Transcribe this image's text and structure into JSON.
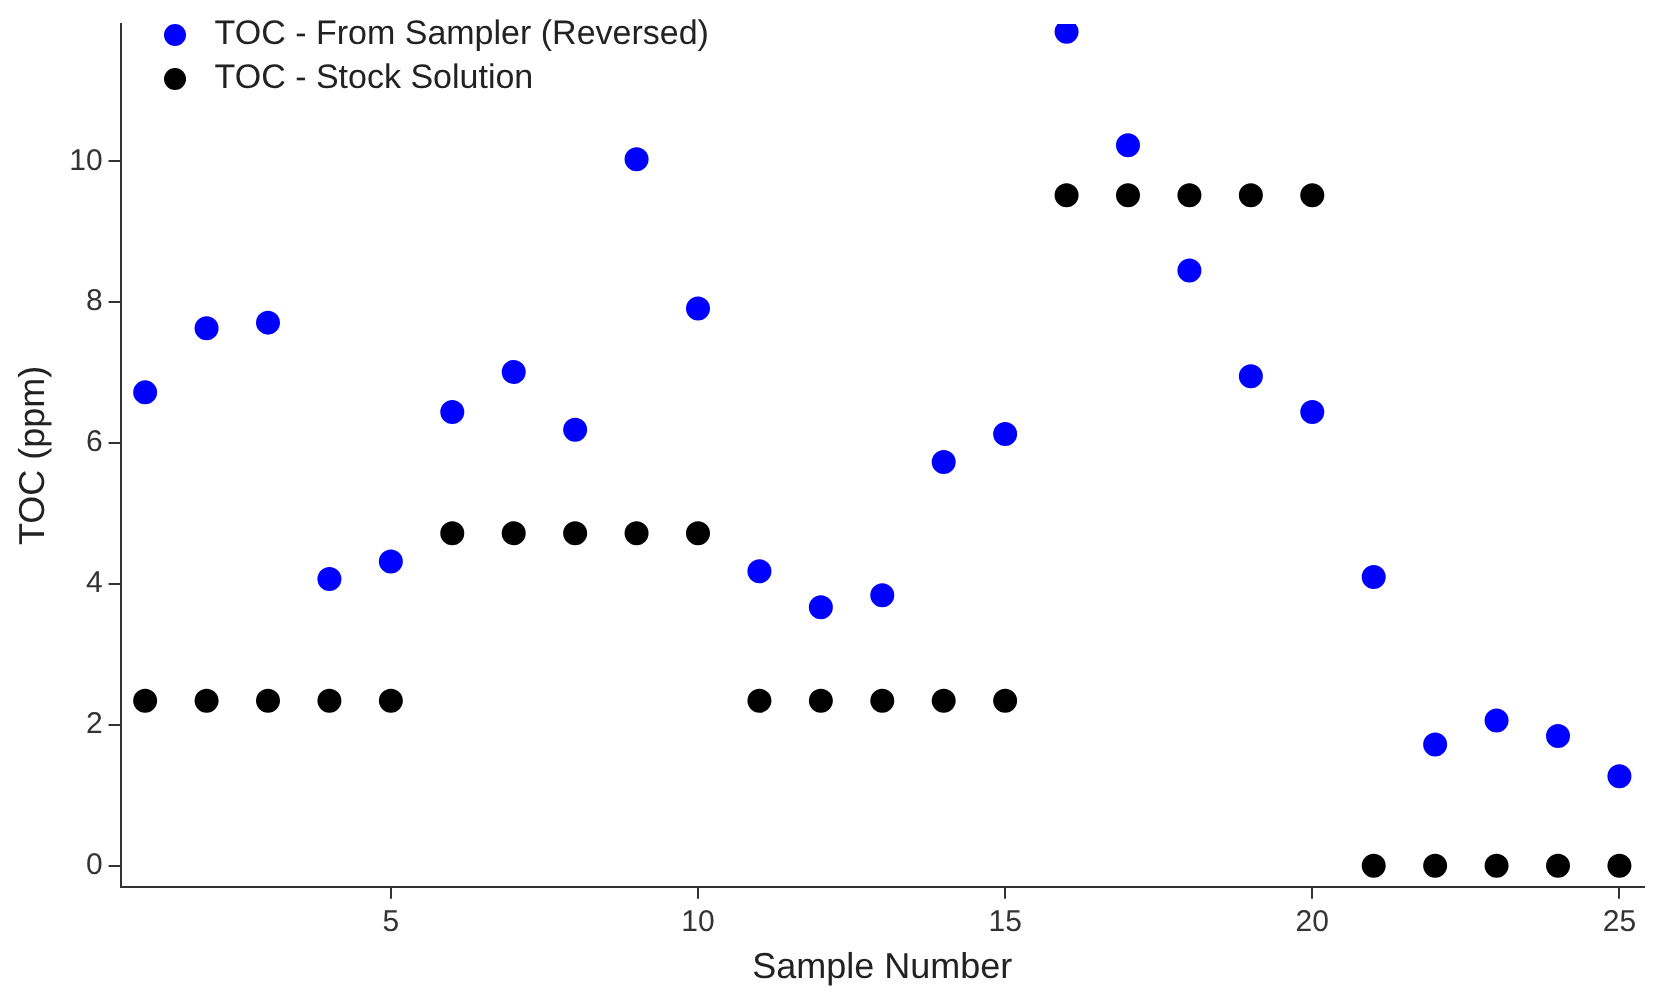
{
  "chart_data": {
    "type": "scatter",
    "xlabel": "Sample Number",
    "ylabel": "TOC (ppm)",
    "x": [
      1,
      2,
      3,
      4,
      5,
      6,
      7,
      8,
      9,
      10,
      11,
      12,
      13,
      14,
      15,
      16,
      17,
      18,
      19,
      20,
      21,
      22,
      23,
      24,
      25
    ],
    "series": [
      {
        "name": "TOC - From Sampler (Reversed)",
        "color": "#0000ff",
        "values": [
          6.72,
          7.63,
          7.71,
          4.07,
          4.32,
          6.44,
          7.01,
          6.19,
          10.03,
          7.91,
          4.18,
          3.67,
          3.84,
          5.73,
          6.13,
          11.84,
          10.23,
          8.45,
          6.95,
          6.44,
          4.1,
          1.72,
          2.06,
          1.84,
          1.27
        ]
      },
      {
        "name": "TOC - Stock Solution",
        "color": "#000000",
        "values": [
          2.34,
          2.34,
          2.34,
          2.34,
          2.34,
          4.72,
          4.72,
          4.72,
          4.72,
          4.72,
          2.34,
          2.34,
          2.34,
          2.34,
          2.34,
          9.52,
          9.52,
          9.52,
          9.52,
          9.52,
          0,
          0,
          0,
          0,
          0
        ]
      }
    ],
    "xlim": [
      0.6,
      25.4
    ],
    "xticks": [
      5,
      10,
      15,
      20,
      25
    ],
    "ylim": [
      -0.3,
      11.95
    ],
    "yticks": [
      0,
      2,
      4,
      6,
      8,
      10
    ],
    "grid": false,
    "legend": "top left",
    "marker": "circle"
  }
}
